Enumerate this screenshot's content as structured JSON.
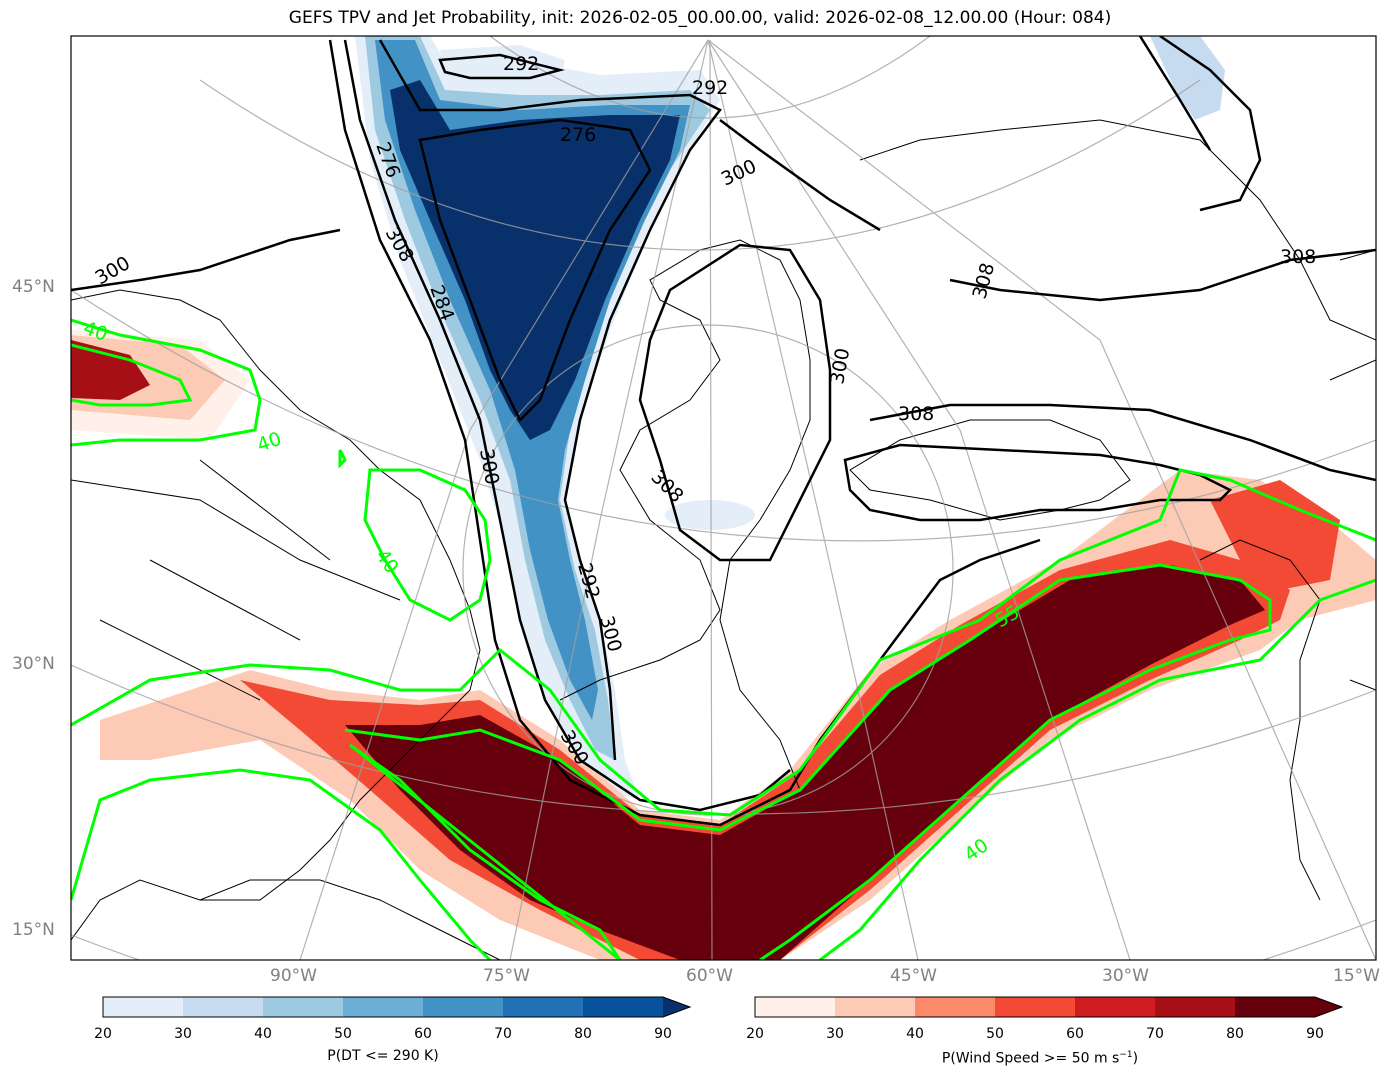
{
  "title": "GEFS TPV and Jet Probability, init: 2026-02-05_00.00.00, valid: 2026-02-08_12.00.00 (Hour: 084)",
  "map": {
    "lat_labels": [
      "45°N",
      "30°N",
      "15°N"
    ],
    "lon_labels": [
      "90°W",
      "75°W",
      "60°W",
      "45°W",
      "30°W",
      "15°W"
    ],
    "theta_contour_labels": [
      "292",
      "292",
      "276",
      "284",
      "276",
      "300",
      "308",
      "300",
      "300",
      "308",
      "308",
      "308",
      "300",
      "292",
      "308",
      "300",
      "300"
    ],
    "jet_contour_labels": [
      "40",
      "40",
      "40",
      "55",
      "40"
    ],
    "colors": {
      "theta_contour": "#000000",
      "wind_contour": "#00ff00",
      "blues": [
        "#e3eef9",
        "#c6dbef",
        "#9ecae1",
        "#6baed6",
        "#4292c6",
        "#2171b5",
        "#08306b"
      ],
      "reds": [
        "#fff0ea",
        "#fdcab5",
        "#fc8a6a",
        "#f24a35",
        "#cf1c1f",
        "#a50f15",
        "#67000d"
      ]
    }
  },
  "colorbars": {
    "dt": {
      "ticks": [
        "20",
        "30",
        "40",
        "50",
        "60",
        "70",
        "80",
        "90"
      ],
      "label": "P(DT <= 290 K)"
    },
    "wind": {
      "ticks": [
        "20",
        "30",
        "40",
        "50",
        "60",
        "70",
        "80",
        "90"
      ],
      "label_prefix": "P(Wind Speed >= 50 m s",
      "label_sup": "−1",
      "label_suffix": ")"
    }
  }
}
